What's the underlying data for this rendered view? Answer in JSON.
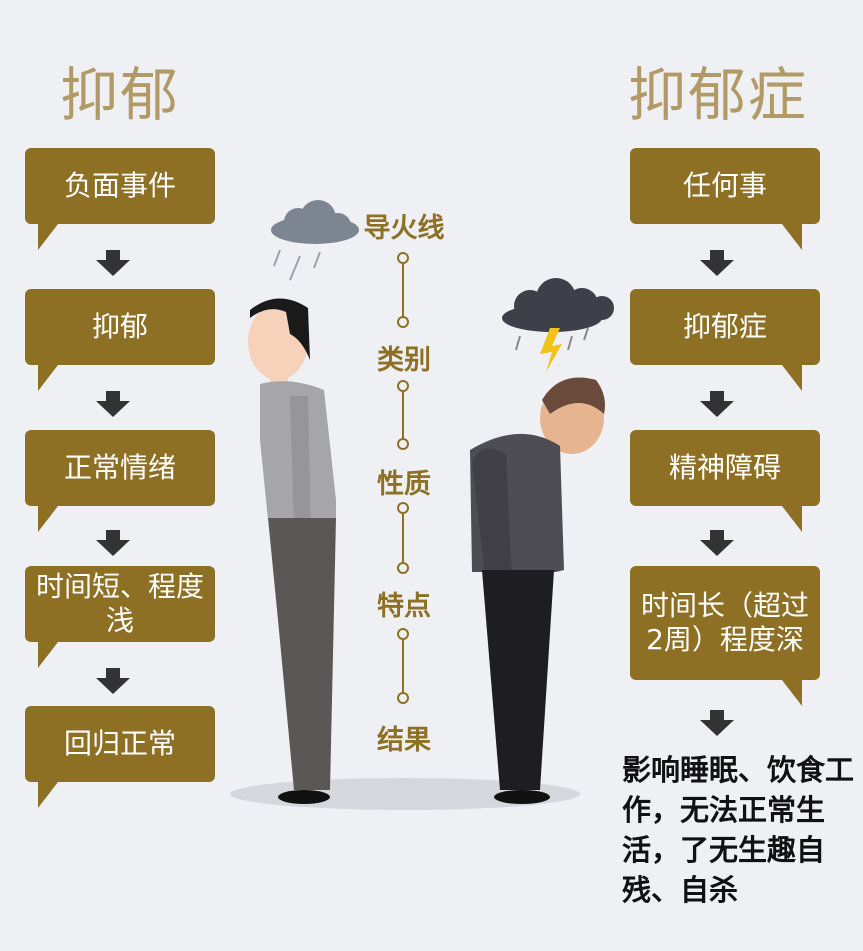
{
  "left": {
    "title": "抑郁",
    "steps": [
      "负面事件",
      "抑郁",
      "正常情绪",
      "时间短、程度浅",
      "回归正常"
    ]
  },
  "right": {
    "title": "抑郁症",
    "steps": [
      "任何事",
      "抑郁症",
      "精神障碍",
      "时间长（超过2周）程度深"
    ],
    "outcome": "影响睡眠、饮食工作，无法正常生活，了无生趣自残、自杀"
  },
  "axis": {
    "labels": [
      "导火线",
      "类别",
      "性质",
      "特点",
      "结果"
    ]
  },
  "colors": {
    "accent": "#8e7024",
    "title": "#b29a67",
    "background": "#eff0f4",
    "arrow": "#333333"
  }
}
